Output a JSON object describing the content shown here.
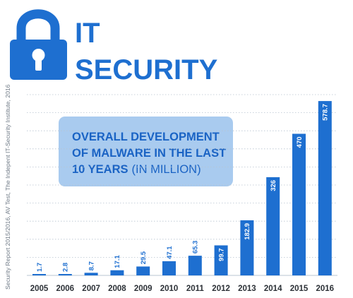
{
  "header": {
    "title_line1": "IT",
    "title_line2": "SECURITY",
    "icon": "padlock-icon"
  },
  "source_note": "Security Report 2015/2016, AV Test, The Indepent IT-Security Institute, 2016",
  "callout": {
    "line1": "OVERALL DEVELOPMENT",
    "line2": "OF MALWARE IN THE LAST",
    "line3_bold": "10 YEARS",
    "line3_rest": "(IN MILLION)"
  },
  "colors": {
    "accent": "#1e6fd0",
    "callout_bg": "#a9cbef",
    "callout_text": "#1a63c4",
    "grid": "#b8c4d0",
    "axis_text": "#2b3036"
  },
  "chart_data": {
    "type": "bar",
    "categories": [
      "2005",
      "2006",
      "2007",
      "2008",
      "2009",
      "2010",
      "2011",
      "2012",
      "2013",
      "2014",
      "2015",
      "2016"
    ],
    "values": [
      1.7,
      2.8,
      8.7,
      17.1,
      29.5,
      47.1,
      65.3,
      99.7,
      182.9,
      326,
      470,
      578.7
    ],
    "value_labels": [
      "1.7",
      "2.8",
      "8.7",
      "17.1",
      "29.5",
      "47.1",
      "65.3",
      "99.7",
      "182.9",
      "326",
      "470",
      "578.7"
    ],
    "title": "OVERALL DEVELOPMENT OF MALWARE IN THE LAST 10 YEARS (IN MILLION)",
    "xlabel": "",
    "ylabel": "",
    "ylim": [
      0,
      600
    ],
    "grid": true,
    "y_axis_labels_shown": false
  }
}
